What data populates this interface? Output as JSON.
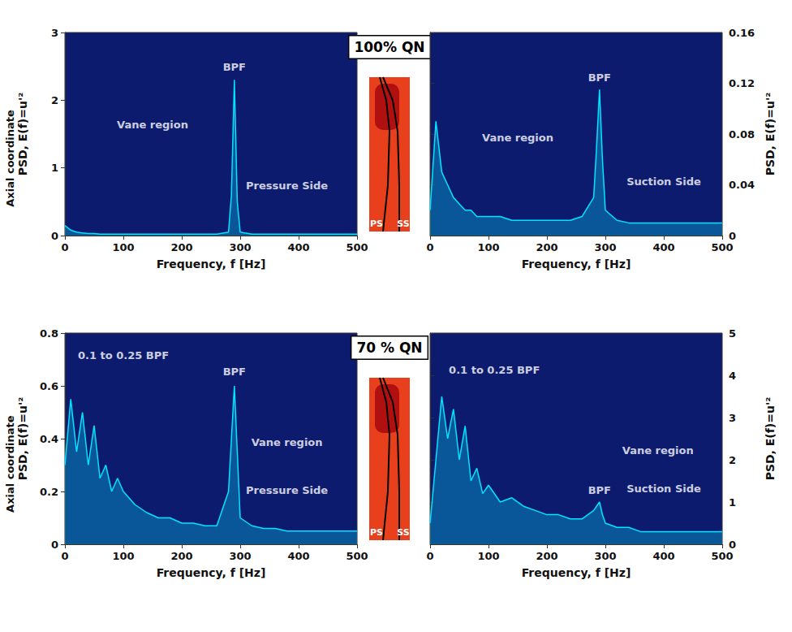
{
  "conditions": [
    "100% QN",
    "70 % QN"
  ],
  "blade_labels": [
    "PS",
    "SS"
  ],
  "chart_data": [
    {
      "type": "line",
      "grid": false,
      "depth_label": "Axial coordinate",
      "xlabel": "Frequency, f [Hz]",
      "ylabel": "PSD, E(f)=u'²",
      "x": [
        0,
        10,
        20,
        30,
        40,
        50,
        60,
        70,
        80,
        90,
        100,
        120,
        140,
        160,
        180,
        200,
        220,
        240,
        260,
        280,
        285,
        290,
        295,
        300,
        320,
        340,
        360,
        380,
        400,
        420,
        440,
        460,
        480,
        500
      ],
      "series": [
        {
          "color": "#00e5ff",
          "values": [
            0.15,
            0.08,
            0.05,
            0.04,
            0.03,
            0.03,
            0.02,
            0.02,
            0.02,
            0.02,
            0.02,
            0.02,
            0.02,
            0.02,
            0.02,
            0.02,
            0.02,
            0.02,
            0.02,
            0.05,
            0.6,
            2.3,
            0.5,
            0.05,
            0.02,
            0.02,
            0.02,
            0.02,
            0.02,
            0.02,
            0.02,
            0.02,
            0.02,
            0.02
          ]
        }
      ],
      "xlim": [
        0,
        500
      ],
      "xticks": [
        0,
        100,
        200,
        300,
        400,
        500
      ],
      "ylim": [
        0,
        3
      ],
      "yticks": [
        0,
        1,
        2,
        3
      ],
      "annotations": [
        {
          "text": "BPF",
          "x": 290,
          "y": 2.35
        },
        {
          "text": "Vane region",
          "x": 150,
          "y": 1.5
        },
        {
          "text": "Pressure Side",
          "x": 380,
          "y": 0.6
        }
      ]
    },
    {
      "type": "line",
      "grid": false,
      "xlabel": "Frequency, f [Hz]",
      "ylabel": "PSD, E(f)=u'²",
      "x": [
        0,
        10,
        20,
        30,
        40,
        50,
        60,
        70,
        80,
        90,
        100,
        120,
        140,
        160,
        180,
        200,
        220,
        240,
        260,
        280,
        285,
        290,
        295,
        300,
        320,
        340,
        360,
        380,
        400,
        420,
        440,
        460,
        480,
        500
      ],
      "series": [
        {
          "color": "#00e5ff",
          "values": [
            0.02,
            0.09,
            0.05,
            0.04,
            0.03,
            0.025,
            0.02,
            0.02,
            0.015,
            0.015,
            0.015,
            0.015,
            0.012,
            0.012,
            0.012,
            0.012,
            0.012,
            0.012,
            0.015,
            0.03,
            0.07,
            0.115,
            0.06,
            0.02,
            0.012,
            0.01,
            0.01,
            0.01,
            0.01,
            0.01,
            0.01,
            0.01,
            0.01,
            0.01
          ]
        }
      ],
      "xlim": [
        0,
        500
      ],
      "xticks": [
        0,
        100,
        200,
        300,
        400,
        500
      ],
      "ylim": [
        0,
        0.16
      ],
      "yticks": [
        0,
        0.04,
        0.08,
        0.12,
        0.16
      ],
      "annotations": [
        {
          "text": "BPF",
          "x": 290,
          "y": 0.117
        },
        {
          "text": "Vane region",
          "x": 150,
          "y": 0.07
        },
        {
          "text": "Suction Side",
          "x": 400,
          "y": 0.035
        }
      ]
    },
    {
      "type": "line",
      "grid": false,
      "depth_label": "Axial coordinate",
      "xlabel": "Frequency, f [Hz]",
      "ylabel": "PSD, E(f)=u'²",
      "x": [
        0,
        10,
        20,
        30,
        40,
        50,
        60,
        70,
        80,
        90,
        100,
        120,
        140,
        160,
        180,
        200,
        220,
        240,
        260,
        280,
        285,
        290,
        295,
        300,
        320,
        340,
        360,
        380,
        400,
        420,
        440,
        460,
        480,
        500
      ],
      "series": [
        {
          "color": "#00e5ff",
          "values": [
            0.3,
            0.55,
            0.35,
            0.5,
            0.3,
            0.45,
            0.25,
            0.3,
            0.2,
            0.25,
            0.2,
            0.15,
            0.12,
            0.1,
            0.1,
            0.08,
            0.08,
            0.07,
            0.07,
            0.2,
            0.4,
            0.6,
            0.35,
            0.1,
            0.07,
            0.06,
            0.06,
            0.05,
            0.05,
            0.05,
            0.05,
            0.05,
            0.05,
            0.05
          ]
        }
      ],
      "xlim": [
        0,
        500
      ],
      "xticks": [
        0,
        100,
        200,
        300,
        400,
        500
      ],
      "ylim": [
        0,
        0.8
      ],
      "yticks": [
        0,
        0.2,
        0.4,
        0.6,
        0.8
      ],
      "annotations": [
        {
          "text": "0.1 to 0.25 BPF",
          "x": 100,
          "y": 0.68
        },
        {
          "text": "BPF",
          "x": 290,
          "y": 0.62
        },
        {
          "text": "Vane region",
          "x": 380,
          "y": 0.35
        },
        {
          "text": "Pressure Side",
          "x": 380,
          "y": 0.17
        }
      ]
    },
    {
      "type": "line",
      "grid": false,
      "xlabel": "Frequency, f [Hz]",
      "ylabel": "PSD, E(f)=u'²",
      "x": [
        0,
        10,
        20,
        30,
        40,
        50,
        60,
        70,
        80,
        90,
        100,
        120,
        140,
        160,
        180,
        200,
        220,
        240,
        260,
        280,
        285,
        290,
        295,
        300,
        320,
        340,
        360,
        380,
        400,
        420,
        440,
        460,
        480,
        500
      ],
      "series": [
        {
          "color": "#00e5ff",
          "values": [
            0.5,
            2.0,
            3.5,
            2.5,
            3.2,
            2.0,
            2.8,
            1.5,
            1.8,
            1.2,
            1.4,
            1.0,
            1.1,
            0.9,
            0.8,
            0.7,
            0.7,
            0.6,
            0.6,
            0.8,
            0.9,
            1.0,
            0.7,
            0.5,
            0.4,
            0.4,
            0.3,
            0.3,
            0.3,
            0.3,
            0.3,
            0.3,
            0.3,
            0.3
          ]
        }
      ],
      "xlim": [
        0,
        500
      ],
      "xticks": [
        0,
        100,
        200,
        300,
        400,
        500
      ],
      "ylim": [
        0,
        5
      ],
      "yticks": [
        0,
        1,
        2,
        3,
        4,
        5
      ],
      "annotations": [
        {
          "text": "0.1 to 0.25 BPF",
          "x": 110,
          "y": 3.9
        },
        {
          "text": "BPF",
          "x": 290,
          "y": 1.05
        },
        {
          "text": "Vane region",
          "x": 390,
          "y": 2.0
        },
        {
          "text": "Suction Side",
          "x": 400,
          "y": 1.1
        }
      ]
    }
  ]
}
